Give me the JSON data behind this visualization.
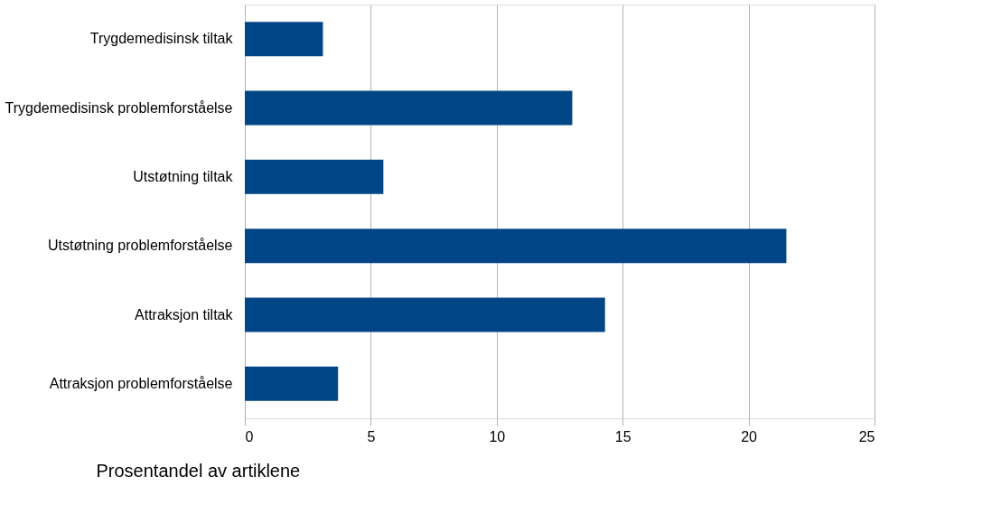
{
  "chart_data": {
    "type": "bar",
    "orientation": "horizontal",
    "xlabel": "Prosentandel av artiklene",
    "categories": [
      "Trygdemedisinsk tiltak",
      "Trygdemedisinsk problemforståelse",
      "Utstøtning tiltak",
      "Utstøtning problemforståelse",
      "Attraksjon tiltak",
      "Attraksjon problemforståelse"
    ],
    "values": [
      3.1,
      13.0,
      5.5,
      21.5,
      14.3,
      3.7
    ],
    "color": "#004586",
    "xlim": [
      0,
      25
    ],
    "xticks": [
      0,
      5,
      10,
      15,
      20,
      25
    ],
    "grid": "x"
  }
}
